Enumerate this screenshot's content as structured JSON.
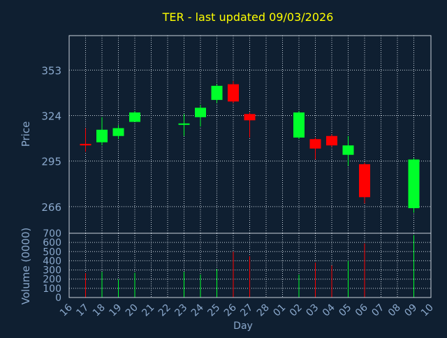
{
  "chart_data": {
    "type": "candlestick",
    "title": "TER - last updated 09/03/2026",
    "xlabel": "Day",
    "price_panel": {
      "ylabel": "Price",
      "yticks": [
        266,
        295,
        324,
        353
      ],
      "ylim": [
        249,
        375
      ]
    },
    "volume_panel": {
      "ylabel": "Volume (0000)",
      "yticks": [
        0,
        100,
        200,
        300,
        400,
        500,
        600,
        700
      ],
      "ylim": [
        0,
        700
      ]
    },
    "x_tick_labels": [
      "16",
      "17",
      "18",
      "19",
      "20",
      "21",
      "22",
      "23",
      "24",
      "25",
      "26",
      "27",
      "28",
      "01",
      "02",
      "03",
      "04",
      "05",
      "06",
      "07",
      "08",
      "09",
      "10"
    ],
    "candles": [
      {
        "day": "17",
        "open": 306,
        "high": 316,
        "low": 301,
        "close": 305,
        "volume": 265
      },
      {
        "day": "18",
        "open": 307,
        "high": 323,
        "low": 305,
        "close": 315,
        "volume": 280
      },
      {
        "day": "19",
        "open": 311,
        "high": 318,
        "low": 309,
        "close": 316,
        "volume": 200
      },
      {
        "day": "20",
        "open": 320,
        "high": 327,
        "low": 320,
        "close": 326,
        "volume": 270
      },
      {
        "day": "23",
        "open": 319,
        "high": 325,
        "low": 311,
        "close": 319,
        "volume": 280
      },
      {
        "day": "24",
        "open": 323,
        "high": 331,
        "low": 317,
        "close": 329,
        "volume": 250
      },
      {
        "day": "25",
        "open": 334,
        "high": 344,
        "low": 332,
        "close": 343,
        "volume": 310
      },
      {
        "day": "26",
        "open": 344,
        "high": 346,
        "low": 332,
        "close": 333,
        "volume": 500
      },
      {
        "day": "27",
        "open": 325,
        "high": 326,
        "low": 310,
        "close": 321,
        "volume": 450
      },
      {
        "day": "02",
        "open": 310,
        "high": 327,
        "low": 309,
        "close": 326,
        "volume": 250
      },
      {
        "day": "03",
        "open": 309,
        "high": 310,
        "low": 296,
        "close": 303,
        "volume": 380
      },
      {
        "day": "04",
        "open": 311,
        "high": 312,
        "low": 304,
        "close": 305,
        "volume": 350
      },
      {
        "day": "05",
        "open": 299,
        "high": 311,
        "low": 292,
        "close": 305,
        "volume": 400
      },
      {
        "day": "06",
        "open": 293,
        "high": 294,
        "low": 268,
        "close": 272,
        "volume": 590
      },
      {
        "day": "09",
        "open": 265,
        "high": 297,
        "low": 262,
        "close": 296,
        "volume": 680
      }
    ],
    "colors": {
      "background": "#0f1f31",
      "up": "#00ff2a",
      "down": "#ff0000",
      "axis_text": "#8aa8cc",
      "title": "#ffff00",
      "grid": "#c8d2dc",
      "frame": "#c8d2dc"
    },
    "grid": true,
    "legend": "none"
  }
}
